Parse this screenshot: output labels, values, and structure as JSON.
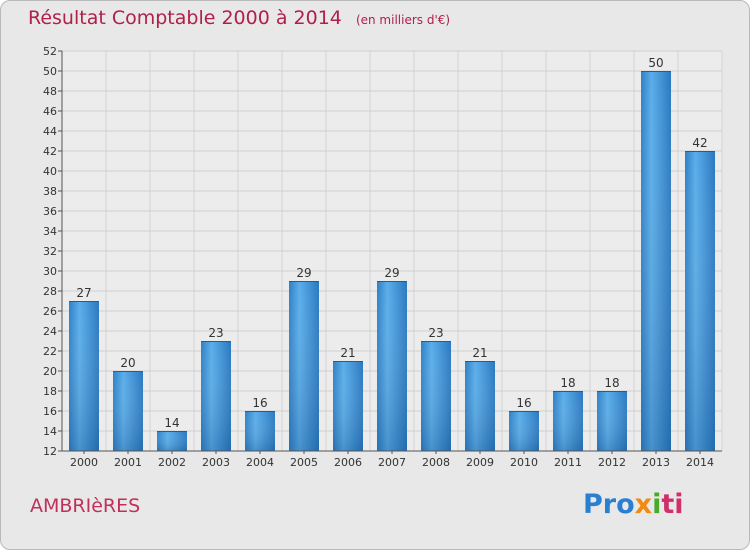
{
  "header": {
    "title": "Résultat Comptable 2000 à 2014",
    "subtitle": "(en milliers d'€)"
  },
  "footer": {
    "commune": "AMBRIèRES",
    "logo_parts": [
      "Pro",
      "x",
      "i",
      "ti"
    ]
  },
  "chart_data": {
    "type": "bar",
    "title": "Résultat Comptable 2000 à 2014",
    "subtitle": "(en milliers d'€)",
    "categories": [
      "2000",
      "2001",
      "2002",
      "2003",
      "2004",
      "2005",
      "2006",
      "2007",
      "2008",
      "2009",
      "2010",
      "2011",
      "2012",
      "2013",
      "2014"
    ],
    "values": [
      27,
      20,
      14,
      23,
      16,
      29,
      21,
      29,
      23,
      21,
      16,
      18,
      18,
      50,
      42
    ],
    "ylim": [
      12,
      52
    ],
    "ytick_step": 2,
    "grid": true,
    "bar_color": "#3a92d8",
    "xlabel": "",
    "ylabel": ""
  }
}
